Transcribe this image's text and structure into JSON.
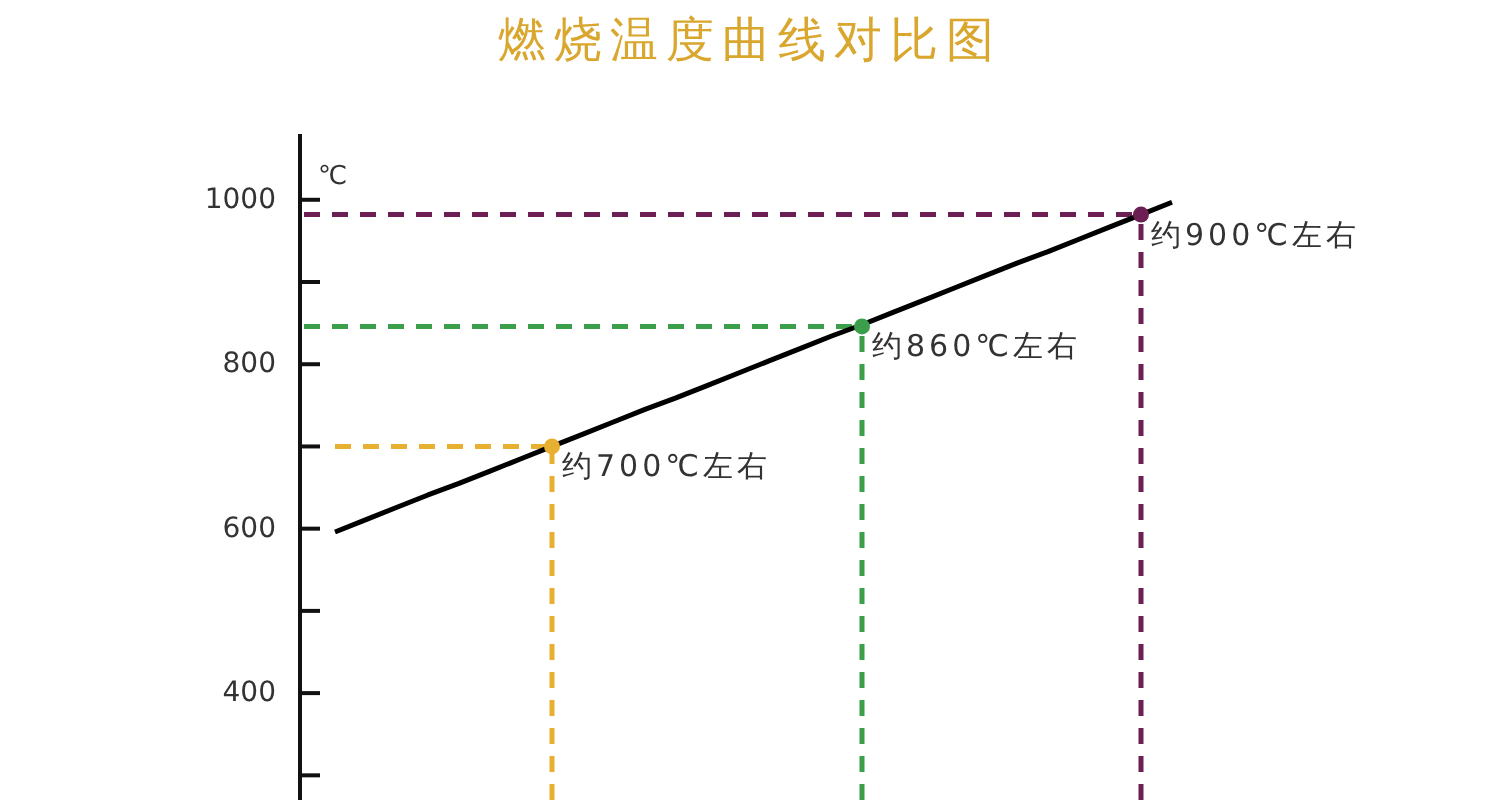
{
  "chart_data": {
    "type": "line",
    "title": "燃烧温度曲线对比图",
    "ylabel": "℃",
    "categories": [
      null,
      null,
      null,
      null,
      null,
      null,
      null,
      null,
      null,
      null,
      null,
      null,
      null,
      null,
      null,
      null,
      null,
      null,
      null,
      null,
      null,
      null,
      null,
      null,
      null,
      null,
      null,
      null,
      null
    ],
    "ylim": [
      270,
      1080
    ],
    "yticks": [
      {
        "value": 300,
        "label": null
      },
      400,
      {
        "value": 500,
        "label": null
      },
      600,
      {
        "value": 700,
        "label": null
      },
      800,
      {
        "value": 900,
        "label": null
      },
      1000
    ],
    "series": [
      {
        "line_style": "dashed",
        "color": "#e8b030",
        "values": [
          null,
          700,
          700,
          700,
          700,
          700,
          700,
          700,
          700,
          null,
          null,
          null,
          null,
          null,
          null,
          null,
          null,
          null,
          null,
          null,
          null,
          null,
          null,
          null,
          null,
          null,
          null,
          null,
          null
        ]
      },
      {
        "line_style": "dashed",
        "color": "#3a9e4a",
        "values": [
          846,
          846,
          846,
          846,
          846,
          846,
          846,
          846,
          846,
          846,
          846,
          846,
          846,
          846,
          846,
          846,
          846,
          846,
          846,
          null,
          null,
          null,
          null,
          null,
          null,
          null,
          null,
          null,
          null
        ]
      },
      {
        "line_style": "dashed",
        "color": "#6b1f52",
        "values": [
          982,
          982,
          982,
          982,
          982,
          982,
          982,
          982,
          982,
          982,
          982,
          982,
          982,
          982,
          982,
          982,
          982,
          982,
          982,
          982,
          982,
          982,
          982,
          982,
          982,
          982,
          982,
          982,
          null
        ]
      },
      {
        "color": "#000000",
        "values": [
          null,
          596,
          611,
          626,
          641,
          655,
          670,
          685,
          700,
          715,
          730,
          745,
          759,
          774,
          789,
          804,
          819,
          834,
          848,
          863,
          878,
          893,
          908,
          923,
          937,
          952,
          967,
          982,
          997
        ]
      },
      {
        "type": "lollipop",
        "marker": "circle",
        "line_style": "dashed",
        "color": "#e8b030",
        "values": [
          null,
          null,
          null,
          null,
          null,
          null,
          null,
          null,
          700,
          null,
          null,
          null,
          null,
          null,
          null,
          null,
          null,
          null,
          null,
          null,
          null,
          null,
          null,
          null,
          null,
          null,
          null,
          null,
          null
        ]
      },
      {
        "type": "lollipop",
        "marker": "circle",
        "line_style": "dashed",
        "color": "#3a9e4a",
        "values": [
          null,
          null,
          null,
          null,
          null,
          null,
          null,
          null,
          null,
          null,
          null,
          null,
          null,
          null,
          null,
          null,
          null,
          null,
          846,
          null,
          null,
          null,
          null,
          null,
          null,
          null,
          null,
          null,
          null
        ]
      },
      {
        "type": "lollipop",
        "marker": "circle",
        "line_style": "dashed",
        "color": "#6b1f52",
        "values": [
          null,
          null,
          null,
          null,
          null,
          null,
          null,
          null,
          null,
          null,
          null,
          null,
          null,
          null,
          null,
          null,
          null,
          null,
          null,
          null,
          null,
          null,
          null,
          null,
          null,
          null,
          null,
          982,
          null
        ]
      }
    ],
    "annotations": [
      "约700℃左右",
      "约860℃左右",
      "约900℃左右"
    ]
  }
}
